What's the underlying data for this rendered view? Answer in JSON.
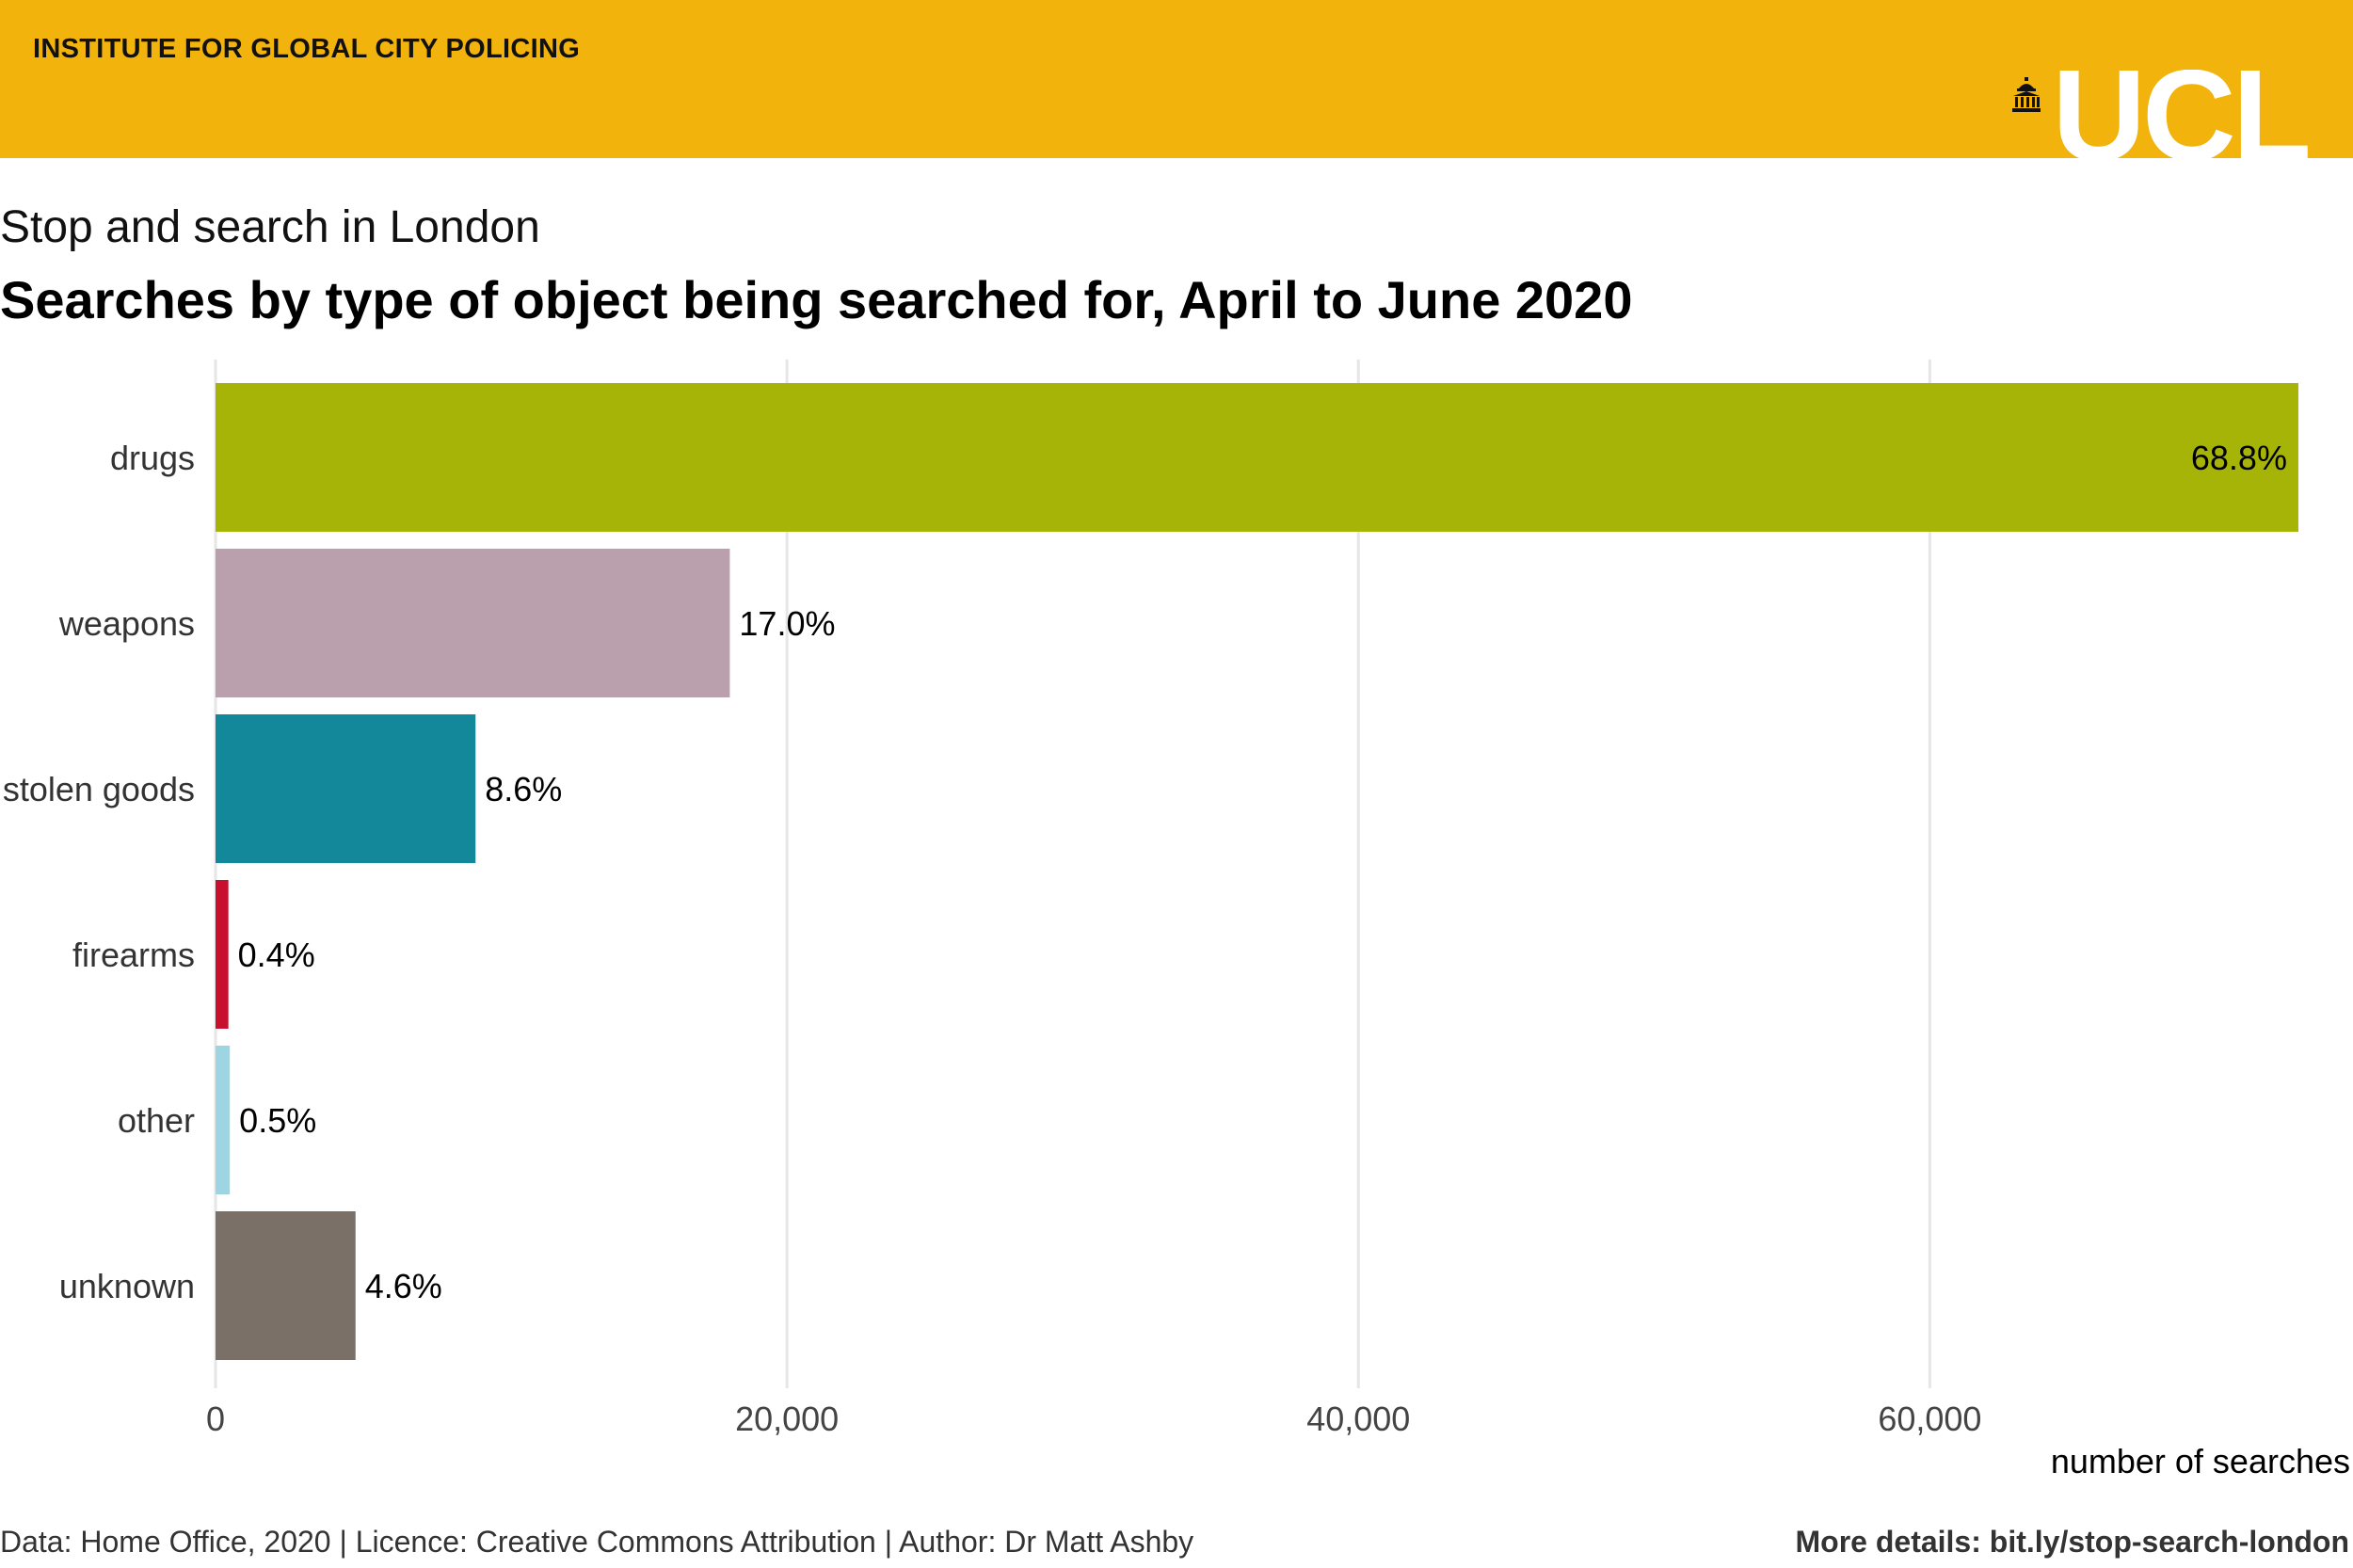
{
  "header": {
    "institute": "INSTITUTE FOR GLOBAL CITY POLICING",
    "logo_text": "UCL",
    "logo_icon": "portico-icon",
    "banner_color": "#F2B30C"
  },
  "subtitle": "Stop and search in London",
  "title": "Searches by type of object being searched for, April to June 2020",
  "footer": {
    "source": "Data: Home Office, 2020 | Licence: Creative Commons Attribution | Author: Dr Matt Ashby",
    "details": "More details: bit.ly/stop-search-london"
  },
  "chart_data": {
    "type": "bar",
    "orientation": "horizontal",
    "categories": [
      "drugs",
      "weapons",
      "stolen goods",
      "firearms",
      "other",
      "unknown"
    ],
    "values": [
      72900,
      18000,
      9100,
      450,
      500,
      4900
    ],
    "labels": [
      "68.8%",
      "17.0%",
      "8.6%",
      "0.4%",
      "0.5%",
      "4.6%"
    ],
    "colors": [
      "#A5B406",
      "#BA9FAD",
      "#12889A",
      "#C8102E",
      "#9ED5E3",
      "#7A7068"
    ],
    "xlabel": "number of searches",
    "xticks": [
      0,
      20000,
      40000,
      60000
    ],
    "xtick_labels": [
      "0",
      "20,000",
      "40,000",
      "60,000"
    ],
    "xlim": [
      0,
      73000
    ],
    "grid": "vertical"
  }
}
